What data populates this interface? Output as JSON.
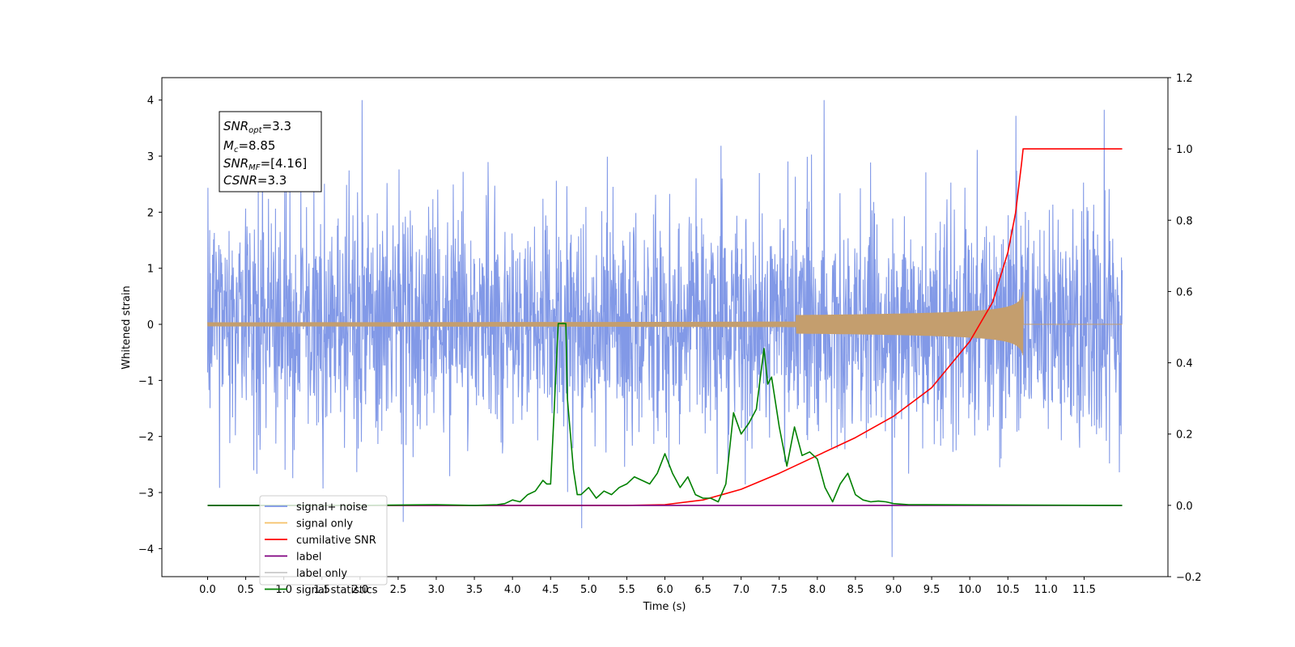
{
  "chart_data": {
    "type": "line",
    "xlabel": "Time (s)",
    "ylabel": "Whitened strain",
    "xlim": [
      -0.6,
      12.6
    ],
    "ylim": [
      -4.5,
      4.4
    ],
    "y2lim": [
      -0.2,
      1.2
    ],
    "x_ticks": [
      "0.0",
      "0.5",
      "1.0",
      "1.5",
      "2.0",
      "2.5",
      "3.0",
      "3.5",
      "4.0",
      "4.5",
      "5.0",
      "5.5",
      "6.0",
      "6.5",
      "7.0",
      "7.5",
      "8.0",
      "8.5",
      "9.0",
      "9.5",
      "10.0",
      "10.5",
      "11.0",
      "11.5"
    ],
    "y_ticks": [
      "4",
      "3",
      "2",
      "1",
      "0",
      "−1",
      "−2",
      "−3",
      "−4"
    ],
    "y2_ticks": [
      "1.2",
      "1.0",
      "0.8",
      "0.6",
      "0.4",
      "0.2",
      "0.0",
      "−0.2"
    ],
    "grid": false,
    "legend_position": "lower-left",
    "stats_box": {
      "line1": {
        "base": "SNR",
        "sub": "opt",
        "rest": "=3.3"
      },
      "line2": {
        "base": "M",
        "sub": "c",
        "rest": "=8.85"
      },
      "line3": {
        "base": "SNR",
        "sub": "MF",
        "rest": "=[4.16]"
      },
      "line4": {
        "base": "CSNR",
        "sub": "",
        "rest": "=3.3"
      }
    },
    "series": [
      {
        "name": "signal+ noise",
        "color": "#7b93e6",
        "axis": "left",
        "style": "noise",
        "x_range": [
          0.0,
          12.0
        ],
        "envelope_sigma": 1.0,
        "extremes_max": 4.0,
        "extremes_min": -4.15
      },
      {
        "name": "signal only",
        "color": "#f5c067",
        "axis": "left",
        "style": "chirp",
        "x_range": [
          0.0,
          12.0
        ],
        "peak_time": 10.7,
        "peak_amplitude": 0.58
      },
      {
        "name": "cumilative SNR",
        "color": "#ff0000",
        "axis": "right",
        "x": [
          0.0,
          5.5,
          6.0,
          6.5,
          7.0,
          7.5,
          8.0,
          8.5,
          9.0,
          9.5,
          10.0,
          10.3,
          10.5,
          10.6,
          10.68,
          10.7,
          12.0
        ],
        "y": [
          0.0,
          0.0,
          0.002,
          0.015,
          0.045,
          0.09,
          0.14,
          0.19,
          0.25,
          0.33,
          0.46,
          0.57,
          0.71,
          0.82,
          0.96,
          1.0,
          1.0
        ]
      },
      {
        "name": "label",
        "color": "#800080",
        "axis": "right",
        "x": [
          0.0,
          12.0
        ],
        "y": [
          0.0,
          0.0
        ]
      },
      {
        "name": "label only",
        "color": "#c8c8c8",
        "axis": "right",
        "x": [],
        "y": []
      },
      {
        "name": "signal statistics",
        "color": "#008000",
        "axis": "right",
        "x": [
          0.0,
          2.0,
          3.0,
          3.5,
          3.8,
          3.9,
          4.0,
          4.1,
          4.2,
          4.3,
          4.4,
          4.45,
          4.5,
          4.55,
          4.6,
          4.62,
          4.7,
          4.72,
          4.8,
          4.85,
          4.9,
          5.0,
          5.1,
          5.2,
          5.3,
          5.4,
          5.5,
          5.6,
          5.7,
          5.8,
          5.9,
          6.0,
          6.1,
          6.2,
          6.3,
          6.4,
          6.5,
          6.6,
          6.7,
          6.8,
          6.9,
          7.0,
          7.1,
          7.2,
          7.3,
          7.35,
          7.4,
          7.5,
          7.6,
          7.7,
          7.8,
          7.9,
          8.0,
          8.1,
          8.2,
          8.3,
          8.4,
          8.5,
          8.6,
          8.7,
          8.8,
          8.9,
          9.0,
          9.2,
          12.0
        ],
        "y": [
          0.0,
          0.0,
          0.002,
          0.0,
          0.002,
          0.005,
          0.015,
          0.01,
          0.03,
          0.04,
          0.07,
          0.06,
          0.06,
          0.28,
          0.51,
          0.51,
          0.51,
          0.3,
          0.1,
          0.03,
          0.03,
          0.05,
          0.02,
          0.04,
          0.03,
          0.05,
          0.06,
          0.08,
          0.07,
          0.06,
          0.09,
          0.145,
          0.09,
          0.05,
          0.08,
          0.03,
          0.02,
          0.02,
          0.01,
          0.06,
          0.26,
          0.2,
          0.23,
          0.27,
          0.44,
          0.34,
          0.36,
          0.22,
          0.11,
          0.22,
          0.14,
          0.15,
          0.13,
          0.05,
          0.01,
          0.06,
          0.09,
          0.03,
          0.015,
          0.01,
          0.012,
          0.01,
          0.005,
          0.002,
          0.0
        ]
      }
    ]
  }
}
